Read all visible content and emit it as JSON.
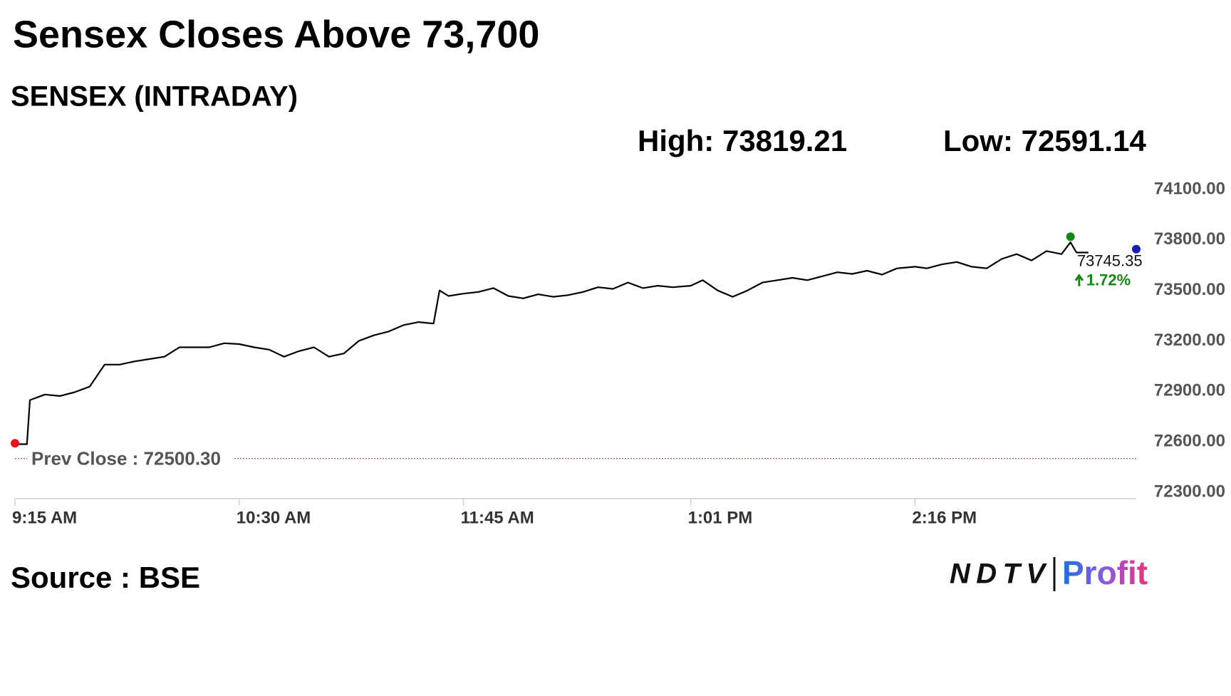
{
  "chart_data": {
    "type": "line",
    "title": "Sensex Closes Above 73,700",
    "subtitle": "SENSEX (INTRADAY)",
    "high_label": "High:",
    "high": 73819.21,
    "low_label": "Low:",
    "low": 72591.14,
    "prev_close_label": "Prev Close :",
    "prev_close": {
      "value": 72500.3,
      "label": "72500.30"
    },
    "last": 73745.35,
    "change": {
      "value": 1.72,
      "label": "1.72%"
    },
    "color": "#000000",
    "prev_close_color": "#c0392b",
    "high_color": "#138a13",
    "low_color": "#e8121a",
    "last_color": "#1a1ab8",
    "change_color": "#138a13",
    "x": [
      "9:15 AM",
      "9:19 AM",
      "9:20 AM",
      "9:25 AM",
      "9:30 AM",
      "9:35 AM",
      "9:40 AM",
      "9:45 AM",
      "9:50 AM",
      "9:55 AM",
      "10:00 AM",
      "10:05 AM",
      "10:10 AM",
      "10:15 AM",
      "10:20 AM",
      "10:25 AM",
      "10:30 AM",
      "10:35 AM",
      "10:40 AM",
      "10:45 AM",
      "10:50 AM",
      "10:55 AM",
      "11:00 AM",
      "11:05 AM",
      "11:10 AM",
      "11:15 AM",
      "11:20 AM",
      "11:25 AM",
      "11:30 AM",
      "11:35 AM",
      "11:37 AM",
      "11:40 AM",
      "11:45 AM",
      "11:50 AM",
      "11:55 AM",
      "12:00 PM",
      "12:05 PM",
      "12:10 PM",
      "12:15 PM",
      "12:20 PM",
      "12:25 PM",
      "12:30 PM",
      "12:35 PM",
      "12:40 PM",
      "12:45 PM",
      "12:50 PM",
      "12:55 PM",
      "1:01 PM",
      "1:05 PM",
      "1:10 PM",
      "1:15 PM",
      "1:20 PM",
      "1:25 PM",
      "1:30 PM",
      "1:35 PM",
      "1:40 PM",
      "1:45 PM",
      "1:50 PM",
      "1:55 PM",
      "2:00 PM",
      "2:05 PM",
      "2:10 PM",
      "2:16 PM",
      "2:20 PM",
      "2:25 PM",
      "2:30 PM",
      "2:35 PM",
      "2:40 PM",
      "2:45 PM",
      "2:50 PM",
      "2:55 PM",
      "3:00 PM",
      "3:05 PM",
      "3:08 PM",
      "3:10 PM",
      "3:14 PM"
    ],
    "values": [
      72586,
      72586,
      72848,
      72881,
      72872,
      72895,
      72928,
      73059,
      73059,
      73078,
      73092,
      73106,
      73162,
      73162,
      73162,
      73186,
      73181,
      73162,
      73148,
      73106,
      73139,
      73162,
      73106,
      73125,
      73200,
      73233,
      73256,
      73294,
      73312,
      73303,
      73500,
      73467,
      73481,
      73491,
      73514,
      73467,
      73453,
      73477,
      73462,
      73472,
      73491,
      73519,
      73509,
      73547,
      73514,
      73528,
      73519,
      73528,
      73561,
      73500,
      73462,
      73500,
      73547,
      73561,
      73575,
      73561,
      73584,
      73608,
      73598,
      73617,
      73594,
      73631,
      73641,
      73631,
      73655,
      73669,
      73641,
      73631,
      73687,
      73716,
      73678,
      73734,
      73716,
      73786,
      73725,
      73725
    ],
    "xlim": [
      "9:15 AM",
      "3:30 PM"
    ],
    "xticks": [
      "9:15 AM",
      "10:30 AM",
      "11:45 AM",
      "1:01 PM",
      "2:16 PM"
    ],
    "ylim": [
      72300,
      74100
    ],
    "yticks": [
      {
        "value": 74100,
        "label": "74100.00"
      },
      {
        "value": 73800,
        "label": "73800.00"
      },
      {
        "value": 73500,
        "label": "73500.00"
      },
      {
        "value": 73200,
        "label": "73200.00"
      },
      {
        "value": 72900,
        "label": "72900.00"
      },
      {
        "value": 72600,
        "label": "72600.00"
      },
      {
        "value": 72300,
        "label": "72300.00"
      }
    ],
    "source": "Source : BSE",
    "logo": {
      "brand": "NDTV",
      "product": "Profit"
    }
  }
}
